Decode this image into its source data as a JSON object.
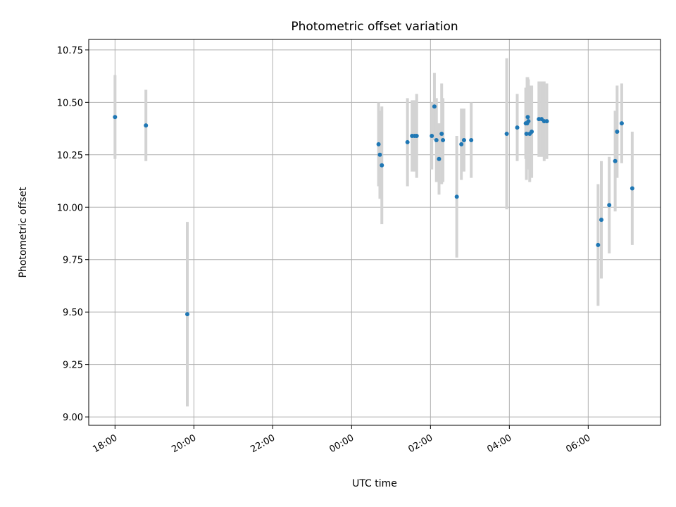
{
  "chart_data": {
    "type": "scatter",
    "title": "Photometric offset variation",
    "xlabel": "UTC time",
    "ylabel": "Photometric offset",
    "xlim": [
      "2023-01-01T17:20",
      "2023-01-02T07:50"
    ],
    "ylim": [
      8.96,
      10.8
    ],
    "x_ticks": [
      "18:00",
      "20:00",
      "22:00",
      "00:00",
      "02:00",
      "04:00",
      "06:00"
    ],
    "x_tick_values": [
      "2023-01-01T18:00",
      "2023-01-01T20:00",
      "2023-01-01T22:00",
      "2023-01-02T00:00",
      "2023-01-02T02:00",
      "2023-01-02T04:00",
      "2023-01-02T06:00"
    ],
    "y_ticks": [
      9.0,
      9.25,
      9.5,
      9.75,
      10.0,
      10.25,
      10.5,
      10.75
    ],
    "y_tick_labels": [
      "9.00",
      "9.25",
      "9.50",
      "9.75",
      "10.00",
      "10.25",
      "10.50",
      "10.75"
    ],
    "grid": true,
    "marker_color": "#1f77b4",
    "errorbar_color": "#d3d3d3",
    "points": [
      {
        "t": "2023-01-01T18:00",
        "y": 10.43,
        "err": 0.2
      },
      {
        "t": "2023-01-01T18:47",
        "y": 10.39,
        "err": 0.17
      },
      {
        "t": "2023-01-01T19:50",
        "y": 9.49,
        "err": 0.44
      },
      {
        "t": "2023-01-02T00:41",
        "y": 10.3,
        "err": 0.2
      },
      {
        "t": "2023-01-02T00:43",
        "y": 10.25,
        "err": 0.21
      },
      {
        "t": "2023-01-02T00:46",
        "y": 10.2,
        "err": 0.28
      },
      {
        "t": "2023-01-02T01:25",
        "y": 10.31,
        "err": 0.21
      },
      {
        "t": "2023-01-02T01:32",
        "y": 10.34,
        "err": 0.17
      },
      {
        "t": "2023-01-02T01:36",
        "y": 10.34,
        "err": 0.17
      },
      {
        "t": "2023-01-02T01:39",
        "y": 10.34,
        "err": 0.2
      },
      {
        "t": "2023-01-02T02:02",
        "y": 10.34,
        "err": 0.16
      },
      {
        "t": "2023-01-02T02:06",
        "y": 10.48,
        "err": 0.16
      },
      {
        "t": "2023-01-02T02:09",
        "y": 10.32,
        "err": 0.2
      },
      {
        "t": "2023-01-02T02:13",
        "y": 10.23,
        "err": 0.17
      },
      {
        "t": "2023-01-02T02:17",
        "y": 10.35,
        "err": 0.24
      },
      {
        "t": "2023-01-02T02:19",
        "y": 10.32,
        "err": 0.2
      },
      {
        "t": "2023-01-02T02:40",
        "y": 10.05,
        "err": 0.29
      },
      {
        "t": "2023-01-02T02:47",
        "y": 10.3,
        "err": 0.17
      },
      {
        "t": "2023-01-02T02:51",
        "y": 10.32,
        "err": 0.15
      },
      {
        "t": "2023-01-02T03:02",
        "y": 10.32,
        "err": 0.18
      },
      {
        "t": "2023-01-02T03:56",
        "y": 10.35,
        "err": 0.36
      },
      {
        "t": "2023-01-02T04:12",
        "y": 10.38,
        "err": 0.16
      },
      {
        "t": "2023-01-02T04:25",
        "y": 10.4,
        "err": 0.17
      },
      {
        "t": "2023-01-02T04:26",
        "y": 10.35,
        "err": 0.22
      },
      {
        "t": "2023-01-02T04:27",
        "y": 10.4,
        "err": 0.22
      },
      {
        "t": "2023-01-02T04:28",
        "y": 10.43,
        "err": 0.19
      },
      {
        "t": "2023-01-02T04:29",
        "y": 10.41,
        "err": 0.2
      },
      {
        "t": "2023-01-02T04:31",
        "y": 10.35,
        "err": 0.23
      },
      {
        "t": "2023-01-02T04:34",
        "y": 10.36,
        "err": 0.22
      },
      {
        "t": "2023-01-02T04:45",
        "y": 10.42,
        "err": 0.18
      },
      {
        "t": "2023-01-02T04:49",
        "y": 10.42,
        "err": 0.18
      },
      {
        "t": "2023-01-02T04:53",
        "y": 10.41,
        "err": 0.19
      },
      {
        "t": "2023-01-02T04:57",
        "y": 10.41,
        "err": 0.18
      },
      {
        "t": "2023-01-02T06:15",
        "y": 9.82,
        "err": 0.29
      },
      {
        "t": "2023-01-02T06:20",
        "y": 9.94,
        "err": 0.28
      },
      {
        "t": "2023-01-02T06:32",
        "y": 10.01,
        "err": 0.23
      },
      {
        "t": "2023-01-02T06:41",
        "y": 10.22,
        "err": 0.24
      },
      {
        "t": "2023-01-02T06:44",
        "y": 10.36,
        "err": 0.22
      },
      {
        "t": "2023-01-02T06:51",
        "y": 10.4,
        "err": 0.19
      },
      {
        "t": "2023-01-02T07:07",
        "y": 10.09,
        "err": 0.27
      }
    ]
  }
}
